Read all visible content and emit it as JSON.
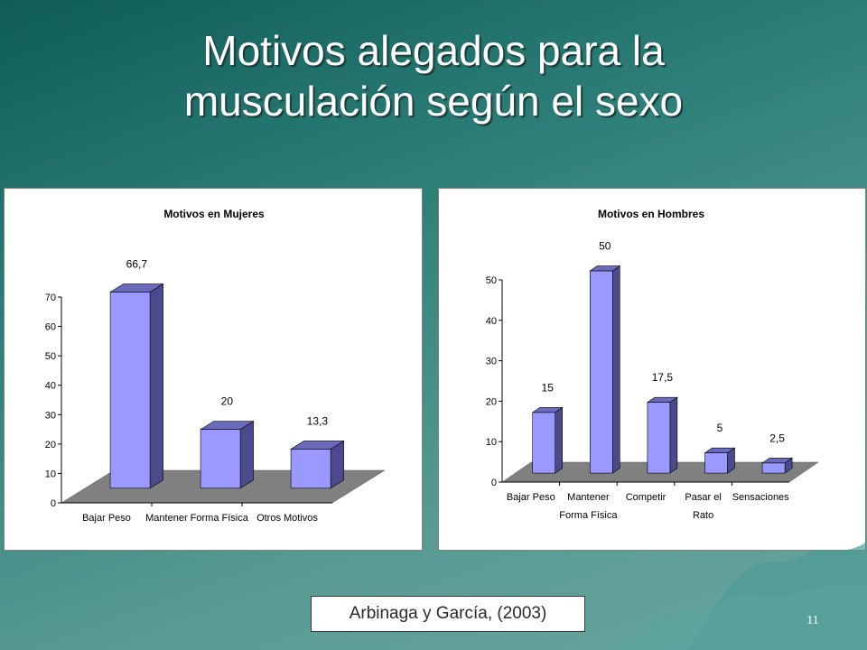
{
  "slide": {
    "title_line1": "Motivos alegados para la",
    "title_line2": "musculación según el sexo",
    "citation": "Arbinaga y García, (2003)",
    "page_number": "11"
  },
  "colors": {
    "background": "#2e7f79",
    "bar_front": "#9999ff",
    "bar_side": "#4a4a8c",
    "bar_top": "#6b6bbd",
    "floor": "#808080"
  },
  "chart_data": [
    {
      "type": "bar",
      "title": "Motivos en Mujeres",
      "categories": [
        [
          "Bajar Peso"
        ],
        [
          "Mantener Forma Física"
        ],
        [
          "Otros Motivos"
        ]
      ],
      "values": [
        66.7,
        20,
        13.3
      ],
      "data_labels": [
        "66,7",
        "20",
        "13,3"
      ],
      "yticks": [
        "0",
        "10",
        "20",
        "30",
        "40",
        "50",
        "60",
        "70"
      ],
      "ylim": [
        0,
        70
      ],
      "xlabel": "",
      "ylabel": "",
      "grid": false,
      "legend": "none",
      "style": "3d-column"
    },
    {
      "type": "bar",
      "title": "Motivos en Hombres",
      "categories": [
        [
          "Bajar Peso"
        ],
        [
          "Mantener",
          "Forma Física"
        ],
        [
          "Competir"
        ],
        [
          "Pasar el",
          "Rato"
        ],
        [
          "Sensaciones"
        ]
      ],
      "values": [
        15,
        50,
        17.5,
        5,
        2.5
      ],
      "data_labels": [
        "15",
        "50",
        "17,5",
        "5",
        "2,5"
      ],
      "yticks": [
        "0",
        "10",
        "20",
        "30",
        "40",
        "50"
      ],
      "ylim": [
        0,
        50
      ],
      "xlabel": "",
      "ylabel": "",
      "grid": false,
      "legend": "none",
      "style": "3d-column"
    }
  ]
}
